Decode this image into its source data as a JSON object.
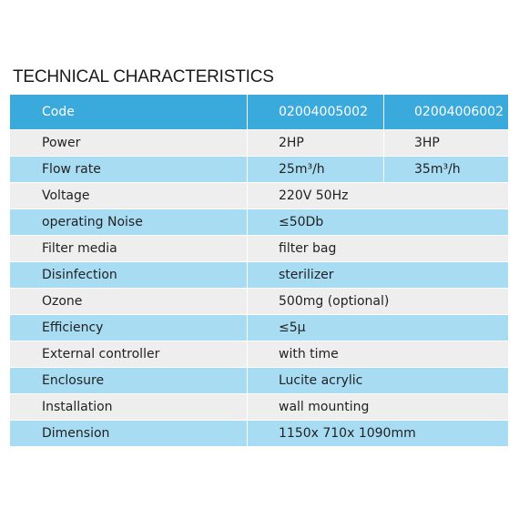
{
  "title": "TECHNICAL CHARACTERISTICS",
  "header": {
    "label": "Code",
    "col1": "02004005002",
    "col2": "02004006002"
  },
  "rows": [
    {
      "label": "Power",
      "col1": "2HP",
      "col2": "3HP"
    },
    {
      "label": "Flow rate",
      "col1": "25m³/h",
      "col2": "35m³/h"
    },
    {
      "label": "Voltage",
      "value": "220V 50Hz"
    },
    {
      "label": "operating Noise",
      "value": "≤50Db"
    },
    {
      "label": "Filter media",
      "value": "filter bag"
    },
    {
      "label": "Disinfection",
      "value": "sterilizer"
    },
    {
      "label": "Ozone",
      "value": "500mg (optional)"
    },
    {
      "label": "Efficiency",
      "value": "≤5μ"
    },
    {
      "label": "External controller",
      "value": "with time"
    },
    {
      "label": "Enclosure",
      "value": "Lucite acrylic"
    },
    {
      "label": "Installation",
      "value": "wall mounting"
    },
    {
      "label": "Dimension",
      "value": "1150x 710x 1090mm"
    }
  ],
  "colors": {
    "header_bg": "#3aaadc",
    "row_odd_bg": "#eeeeee",
    "row_even_bg": "#a8dcf3"
  }
}
